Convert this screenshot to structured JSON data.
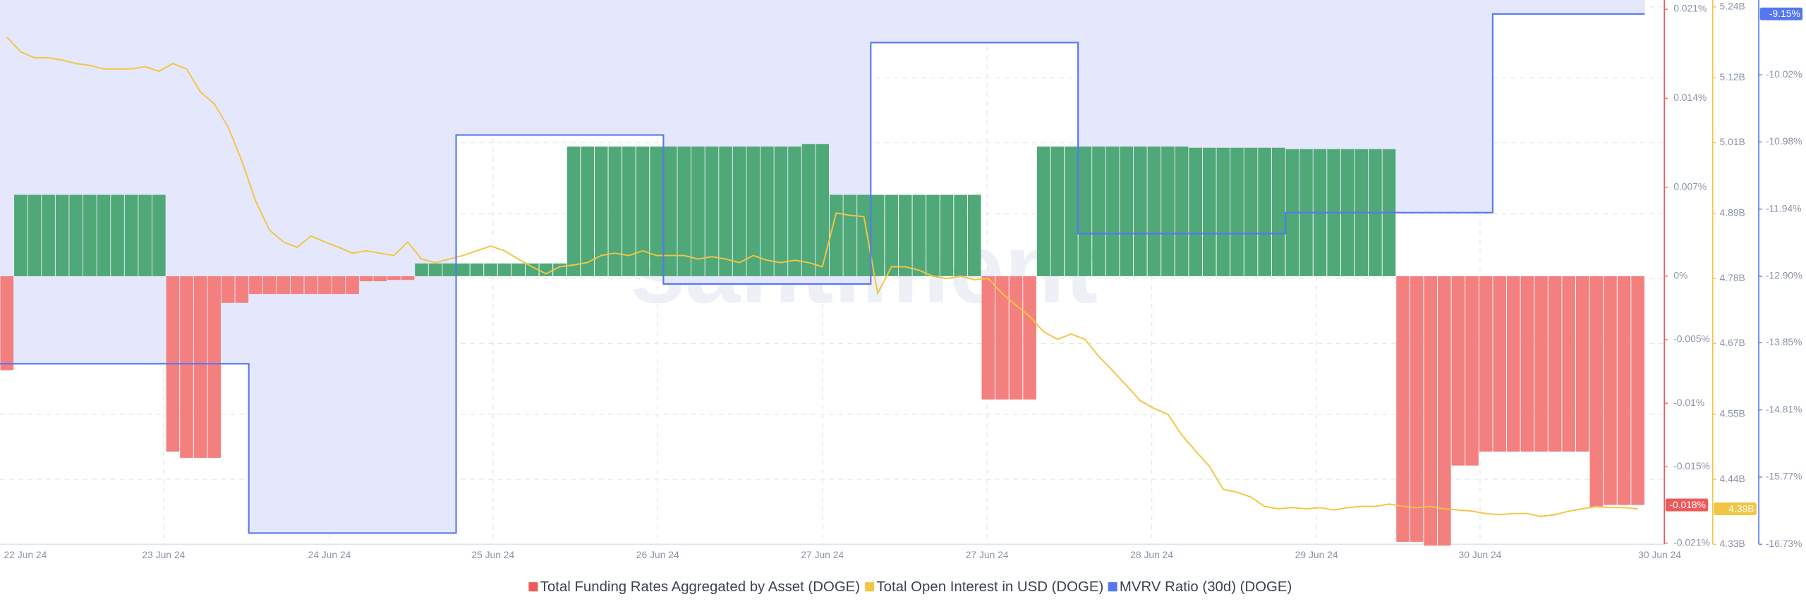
{
  "chart_data": {
    "type": "combo",
    "watermark": "santiment",
    "x_labels": [
      "22 Jun 24",
      "23 Jun 24",
      "24 Jun 24",
      "25 Jun 24",
      "26 Jun 24",
      "27 Jun 24",
      "27 Jun 24",
      "28 Jun 24",
      "29 Jun 24",
      "30 Jun 24",
      "30 Jun 24"
    ],
    "series": [
      {
        "name": "Total Funding Rates Aggregated by Asset (DOGE)",
        "type": "bar",
        "axis": "y",
        "color": "#ee5a5a",
        "color_positive": "#4fa877",
        "color_negative": "#f47f7f",
        "values": [
          -0.0074,
          0.0064,
          0.0064,
          0.0064,
          0.0064,
          0.0064,
          0.0064,
          0.0064,
          0.0064,
          0.0064,
          0.0064,
          0.0064,
          -0.0138,
          -0.0143,
          -0.0143,
          -0.0143,
          -0.0021,
          -0.0021,
          -0.0014,
          -0.0014,
          -0.0014,
          -0.0014,
          -0.0014,
          -0.0014,
          -0.0014,
          -0.0014,
          -0.0004,
          -0.0004,
          -0.0003,
          -0.0003,
          0.001,
          0.001,
          0.001,
          0.001,
          0.001,
          0.001,
          0.001,
          0.001,
          0.001,
          0.001,
          0.001,
          0.0102,
          0.0102,
          0.0102,
          0.0102,
          0.0102,
          0.0102,
          0.0102,
          0.0102,
          0.0102,
          0.0102,
          0.0102,
          0.0102,
          0.0102,
          0.0102,
          0.0102,
          0.0102,
          0.0102,
          0.0104,
          0.0104,
          0.0064,
          0.0064,
          0.0064,
          0.0064,
          0.0064,
          0.0064,
          0.0064,
          0.0064,
          0.0064,
          0.0064,
          0.0064,
          -0.0097,
          -0.0097,
          -0.0097,
          -0.0097,
          0.0102,
          0.0102,
          0.0102,
          0.0102,
          0.0102,
          0.0102,
          0.0102,
          0.0102,
          0.0102,
          0.0102,
          0.0102,
          0.0101,
          0.0101,
          0.0101,
          0.0101,
          0.0101,
          0.0101,
          0.0101,
          0.01,
          0.01,
          0.01,
          0.01,
          0.01,
          0.01,
          0.01,
          0.01,
          -0.0209,
          -0.0209,
          -0.0212,
          -0.0212,
          -0.0149,
          -0.0149,
          -0.0138,
          -0.0138,
          -0.0138,
          -0.0138,
          -0.0138,
          -0.0138,
          -0.0138,
          -0.0138,
          -0.0182,
          -0.018,
          -0.018,
          -0.018
        ],
        "last_label": {
          "value": -0.018,
          "label": "-0.018%"
        }
      },
      {
        "name": "Total Open Interest in USD (DOGE)",
        "type": "line",
        "axis": "y2",
        "color": "#f2c544",
        "values": [
          5.189,
          5.164,
          5.154,
          5.154,
          5.15,
          5.144,
          5.141,
          5.135,
          5.135,
          5.135,
          5.139,
          5.131,
          5.144,
          5.135,
          5.096,
          5.076,
          5.037,
          4.979,
          4.911,
          4.862,
          4.842,
          4.833,
          4.852,
          4.842,
          4.833,
          4.823,
          4.827,
          4.823,
          4.819,
          4.842,
          4.813,
          4.807,
          4.813,
          4.819,
          4.827,
          4.835,
          4.827,
          4.813,
          4.8,
          4.788,
          4.8,
          4.803,
          4.807,
          4.819,
          4.823,
          4.819,
          4.827,
          4.819,
          4.819,
          4.819,
          4.813,
          4.817,
          4.813,
          4.807,
          4.819,
          4.811,
          4.807,
          4.811,
          4.807,
          4.8,
          4.891,
          4.887,
          4.885,
          4.755,
          4.8,
          4.8,
          4.794,
          4.784,
          4.78,
          4.784,
          4.778,
          4.78,
          4.755,
          4.735,
          4.716,
          4.69,
          4.677,
          4.686,
          4.677,
          4.648,
          4.624,
          4.599,
          4.573,
          4.56,
          4.55,
          4.515,
          4.488,
          4.462,
          4.423,
          4.418,
          4.41,
          4.394,
          4.39,
          4.392,
          4.39,
          4.392,
          4.388,
          4.392,
          4.394,
          4.394,
          4.398,
          4.394,
          4.392,
          4.394,
          4.39,
          4.388,
          4.386,
          4.382,
          4.38,
          4.382,
          4.382,
          4.377,
          4.38,
          4.386,
          4.39,
          4.394,
          4.392,
          4.392,
          4.39
        ],
        "last_label": {
          "value": 4.39,
          "label": "4.39B"
        }
      },
      {
        "name": "MVRV Ratio (30d) (DOGE)",
        "type": "step-area",
        "axis": "y3",
        "color": "#5677f0",
        "fill": "#e5e8fc",
        "values": [
          -14.15,
          -14.15,
          -14.15,
          -14.15,
          -14.15,
          -14.15,
          -14.15,
          -14.15,
          -14.15,
          -14.15,
          -14.15,
          -14.15,
          -14.15,
          -14.15,
          -14.15,
          -14.15,
          -14.15,
          -14.15,
          -16.57,
          -16.57,
          -16.57,
          -16.57,
          -16.57,
          -16.57,
          -16.57,
          -16.57,
          -16.57,
          -16.57,
          -16.57,
          -16.57,
          -16.57,
          -16.57,
          -16.57,
          -10.88,
          -10.88,
          -10.88,
          -10.88,
          -10.88,
          -10.88,
          -10.88,
          -10.88,
          -10.88,
          -10.88,
          -10.88,
          -10.88,
          -10.88,
          -10.88,
          -10.88,
          -13.01,
          -13.01,
          -13.01,
          -13.01,
          -13.01,
          -13.01,
          -13.01,
          -13.01,
          -13.01,
          -13.01,
          -13.01,
          -13.01,
          -13.01,
          -13.01,
          -13.01,
          -9.56,
          -9.56,
          -9.56,
          -9.56,
          -9.56,
          -9.56,
          -9.56,
          -9.56,
          -9.56,
          -9.56,
          -9.56,
          -9.56,
          -9.56,
          -9.56,
          -9.56,
          -12.29,
          -12.29,
          -12.29,
          -12.29,
          -12.29,
          -12.29,
          -12.29,
          -12.29,
          -12.29,
          -12.29,
          -12.29,
          -12.29,
          -12.29,
          -12.29,
          -12.29,
          -11.99,
          -11.99,
          -11.99,
          -11.99,
          -11.99,
          -11.99,
          -11.99,
          -11.99,
          -11.99,
          -11.99,
          -11.99,
          -11.99,
          -11.99,
          -11.99,
          -11.99,
          -9.15,
          -9.15,
          -9.15,
          -9.15,
          -9.15,
          -9.15,
          -9.15,
          -9.15,
          -9.15,
          -9.15,
          -9.15
        ],
        "last_label": {
          "value": -9.15,
          "label": "-9.15%"
        }
      }
    ],
    "ylim": [
      -0.021,
      0.021
    ],
    "yticks": [
      {
        "value": 0.021,
        "label": "0.021%"
      },
      {
        "value": 0.014,
        "label": "0.014%"
      },
      {
        "value": 0.007,
        "label": "0.007%"
      },
      {
        "value": 0,
        "label": "0%"
      },
      {
        "value": -0.005,
        "label": "-0.005%"
      },
      {
        "value": -0.01,
        "label": "-0.01%"
      },
      {
        "value": -0.015,
        "label": "-0.015%"
      },
      {
        "value": -0.021,
        "label": "-0.021%"
      }
    ],
    "y2lim": [
      4.33,
      5.24
    ],
    "y2ticks": [
      {
        "value": 5.24,
        "label": "5.24B"
      },
      {
        "value": 5.12,
        "label": "5.12B"
      },
      {
        "value": 5.01,
        "label": "5.01B"
      },
      {
        "value": 4.89,
        "label": "4.89B"
      },
      {
        "value": 4.78,
        "label": "4.78B"
      },
      {
        "value": 4.67,
        "label": "4.67B"
      },
      {
        "value": 4.55,
        "label": "4.55B"
      },
      {
        "value": 4.44,
        "label": "4.44B"
      },
      {
        "value": 4.33,
        "label": "4.33B"
      }
    ],
    "y3lim": [
      -16.73,
      -9.05
    ],
    "y3ticks": [
      {
        "value": -10.02,
        "label": "-10.02%"
      },
      {
        "value": -10.98,
        "label": "-10.98%"
      },
      {
        "value": -11.94,
        "label": "-11.94%"
      },
      {
        "value": -12.9,
        "label": "-12.90%"
      },
      {
        "value": -13.85,
        "label": "-13.85%"
      },
      {
        "value": -14.81,
        "label": "-14.81%"
      },
      {
        "value": -15.77,
        "label": "-15.77%"
      },
      {
        "value": -16.73,
        "label": "-16.73%"
      }
    ],
    "grid": true
  }
}
